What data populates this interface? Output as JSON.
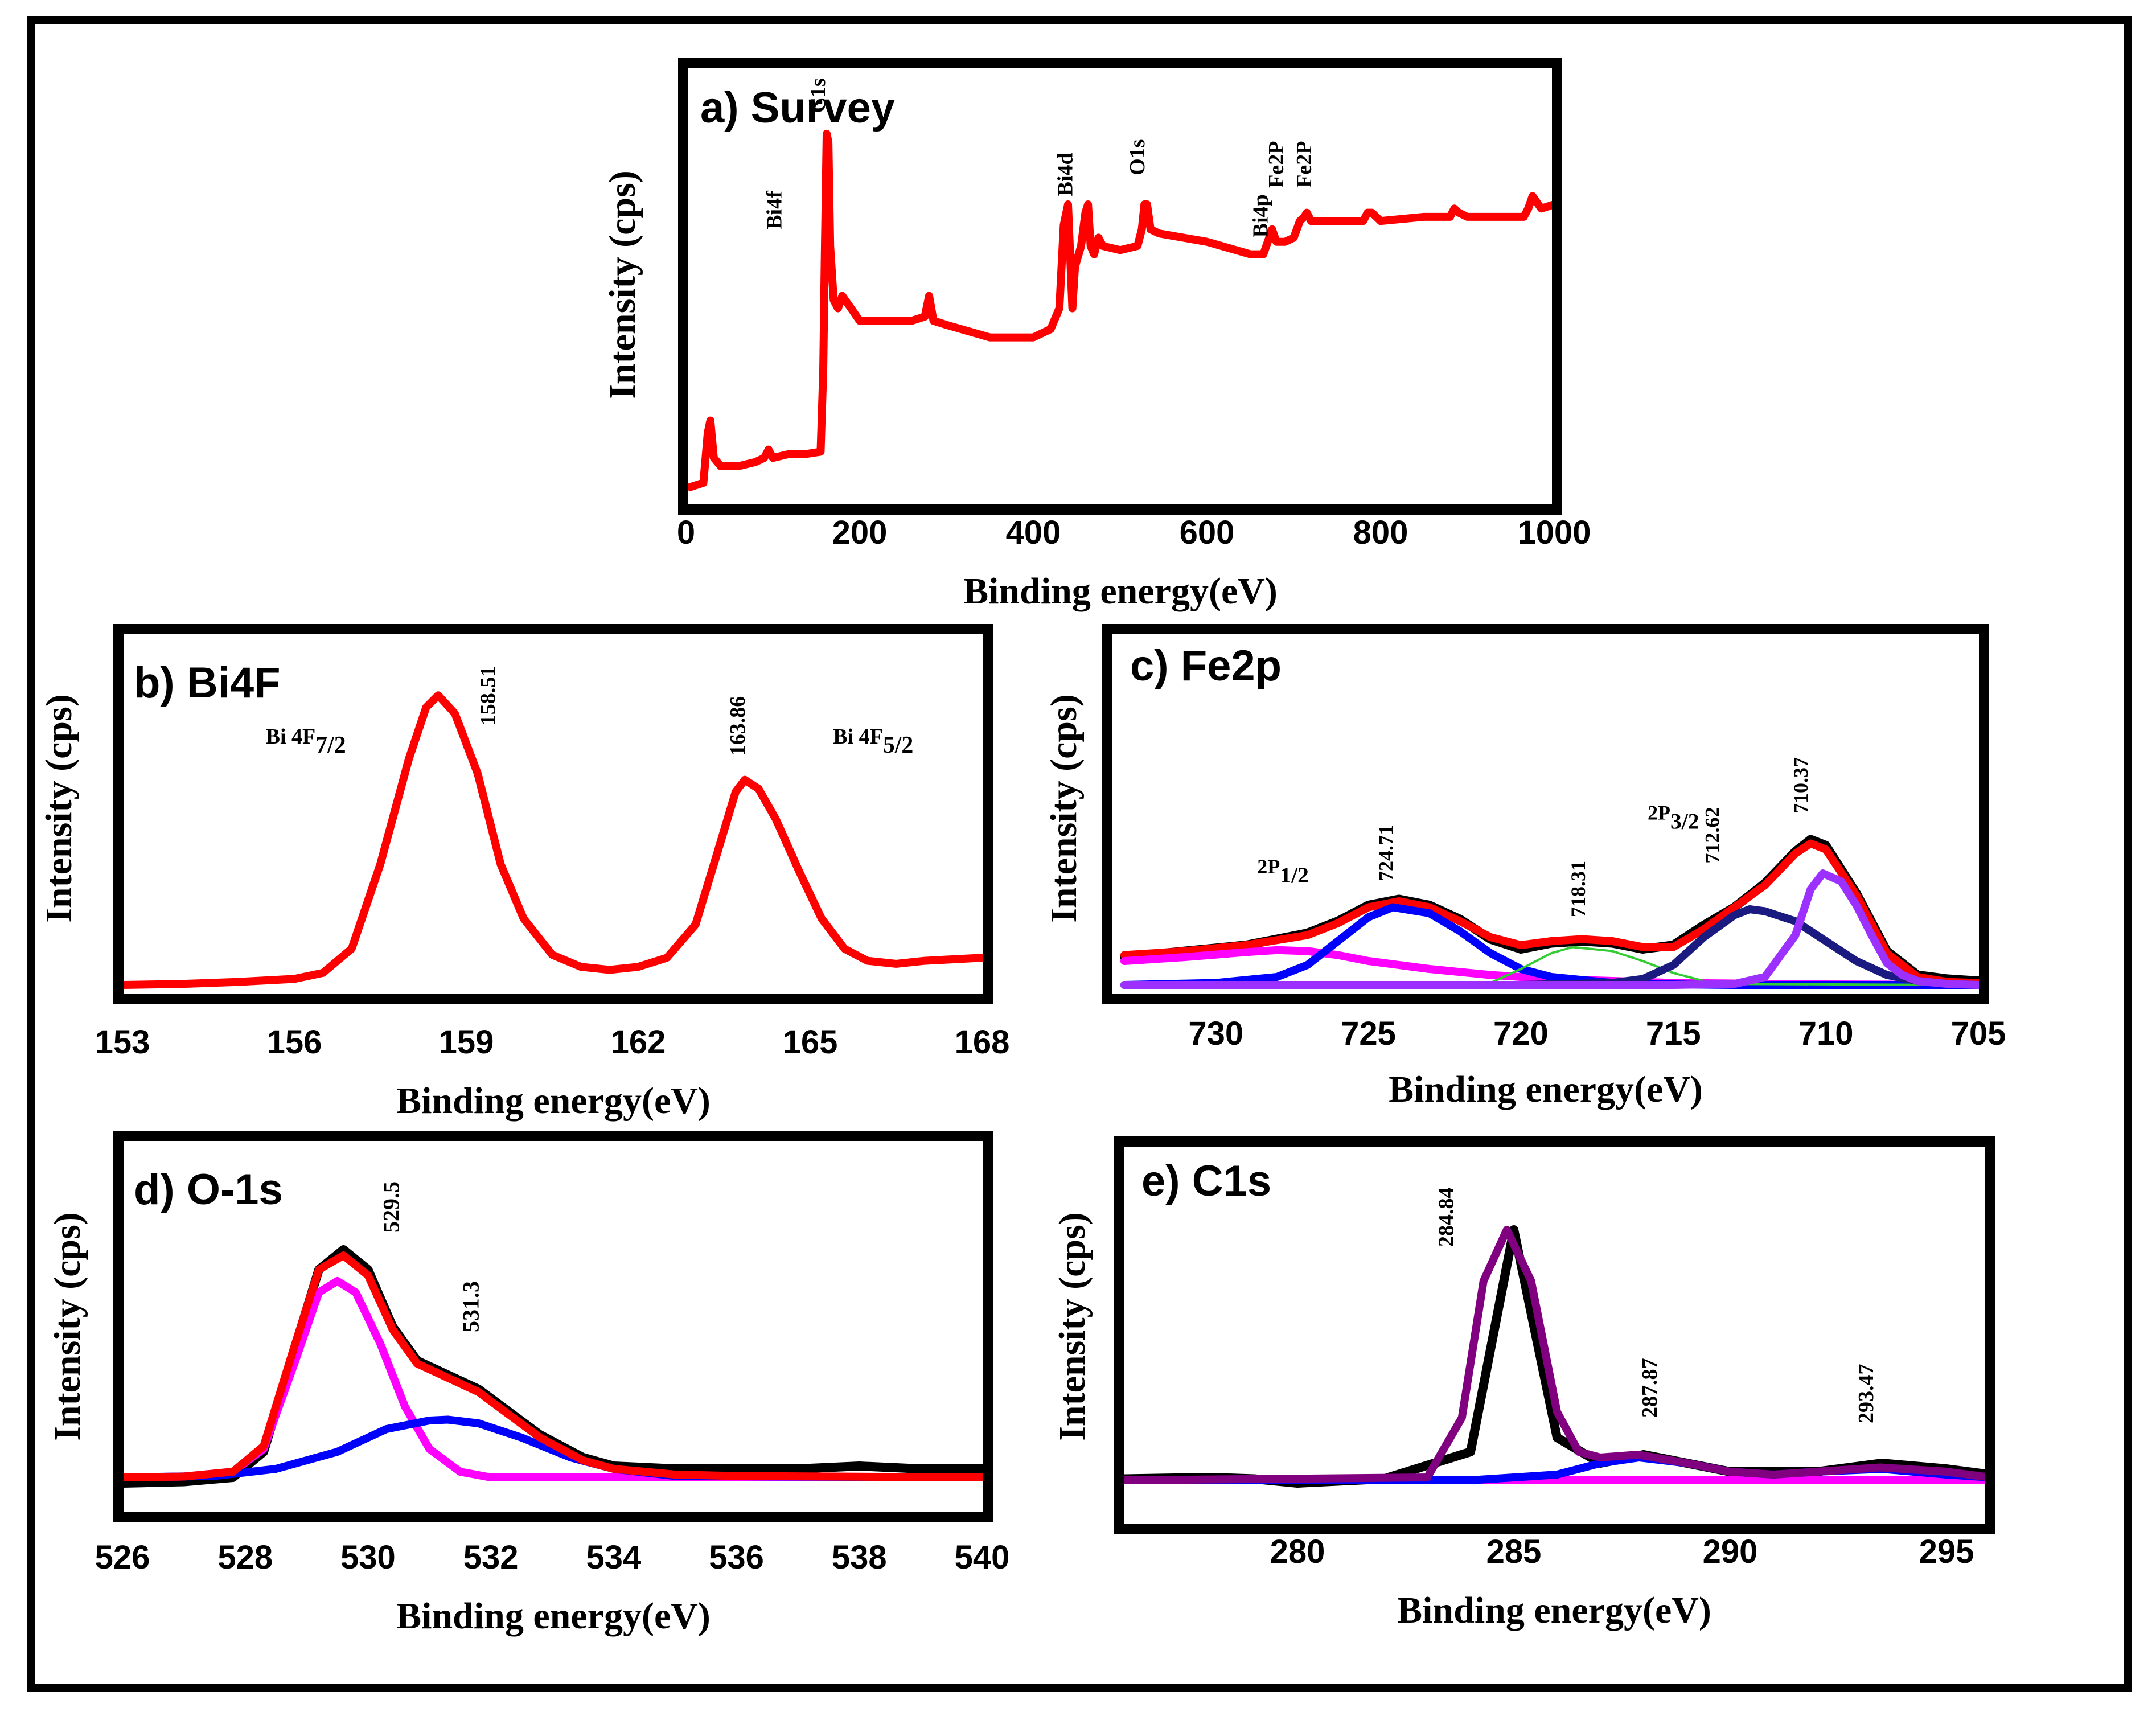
{
  "colors": {
    "raw": "#000000",
    "fit": "#ff0000",
    "magenta": "#ff00ff",
    "blue": "#0000ff",
    "navy": "#1a1a80",
    "violet": "#9b30ff",
    "green": "#33cc33",
    "purple": "#800080"
  },
  "chart_data": [
    {
      "type": "line",
      "title": "a) Survey",
      "xlabel": "Binding energy(eV)",
      "ylabel": "Intensity (cps)",
      "xlim": [
        0,
        1000
      ],
      "ylim": [
        0,
        100
      ],
      "x_reversed": false,
      "xticks": [
        0,
        200,
        400,
        600,
        800,
        1000
      ],
      "grid": false,
      "series": [
        {
          "color": "#ff0000",
          "x": [
            5,
            20,
            25,
            28,
            32,
            40,
            60,
            80,
            90,
            95,
            100,
            120,
            140,
            155,
            158,
            160,
            162,
            164,
            166,
            170,
            175,
            180,
            190,
            200,
            230,
            260,
            275,
            280,
            285,
            300,
            350,
            400,
            420,
            430,
            435,
            440,
            445,
            448,
            455,
            460,
            463,
            466,
            470,
            475,
            480,
            500,
            520,
            525,
            528,
            531,
            535,
            545,
            600,
            650,
            665,
            670,
            675,
            680,
            690,
            700,
            707,
            712,
            715,
            720,
            730,
            760,
            780,
            785,
            790,
            795,
            800,
            850,
            880,
            885,
            890,
            900,
            950,
            965,
            970,
            975,
            985,
            1000
          ],
          "y": [
            2,
            3,
            15,
            18,
            9,
            7,
            7,
            8,
            9,
            11,
            9,
            10,
            10,
            10.5,
            30,
            60,
            87,
            85,
            60,
            47,
            45,
            48,
            45,
            42,
            42,
            42,
            43,
            48,
            42,
            41,
            38,
            38,
            40,
            45,
            65,
            70,
            45,
            55,
            60,
            68,
            70,
            60,
            58,
            62,
            60,
            59,
            60,
            64,
            70,
            70,
            64,
            63,
            61,
            58,
            58,
            61,
            64,
            61,
            61,
            62,
            66,
            67,
            68,
            66,
            66,
            66,
            66,
            68,
            68,
            67,
            66,
            67,
            67,
            69,
            68,
            67,
            67,
            67,
            69,
            72,
            69,
            70
          ]
        }
      ],
      "annotations": [
        {
          "text": "Bi4f",
          "x": 110,
          "y": 64
        },
        {
          "text": "C1s",
          "x": 160,
          "y": 92
        },
        {
          "text": "Bi4d",
          "x": 445,
          "y": 72
        },
        {
          "text": "O1s",
          "x": 528,
          "y": 77
        },
        {
          "text": "Bi4p",
          "x": 670,
          "y": 62
        },
        {
          "text": "Fe2P",
          "x": 688,
          "y": 74
        },
        {
          "text": "Fe2P",
          "x": 720,
          "y": 74
        }
      ]
    },
    {
      "type": "line",
      "title": "b) Bi4F",
      "xlabel": "Binding energy(eV)",
      "ylabel": "Intensity (cps)",
      "xlim": [
        153,
        168
      ],
      "ylim": [
        0,
        100
      ],
      "x_reversed": false,
      "xticks": [
        153,
        156,
        159,
        162,
        165,
        168
      ],
      "grid": false,
      "series": [
        {
          "color": "#ff0000",
          "x": [
            153,
            154,
            155,
            156,
            156.5,
            157,
            157.5,
            158,
            158.3,
            158.51,
            158.8,
            159.2,
            159.6,
            160,
            160.5,
            161,
            161.5,
            162,
            162.5,
            163,
            163.4,
            163.7,
            163.86,
            164.1,
            164.4,
            164.8,
            165.2,
            165.6,
            166,
            166.5,
            167,
            168
          ],
          "y": [
            0,
            0.3,
            1,
            2,
            4,
            12,
            40,
            75,
            92,
            96,
            90,
            70,
            40,
            22,
            10,
            6,
            5,
            6,
            9,
            20,
            45,
            64,
            68,
            65,
            55,
            38,
            22,
            12,
            8,
            7,
            8,
            9
          ]
        }
      ],
      "annotations": [
        {
          "text": "158.51",
          "x": 159.5,
          "y": 86
        },
        {
          "text": "163.86",
          "x": 163.86,
          "y": 76
        },
        {
          "text": "Bi 4F",
          "sub": "7/2",
          "x": 156.2,
          "y": 80
        },
        {
          "text": "Bi 4F",
          "sub": "5/2",
          "x": 166.1,
          "y": 80
        }
      ]
    },
    {
      "type": "line",
      "title": "c) Fe2p",
      "xlabel": "Binding energy(eV)",
      "ylabel": "Intensity (cps)",
      "xlim": [
        733,
        705
      ],
      "ylim": [
        0,
        100
      ],
      "x_reversed": true,
      "xticks": [
        730,
        725,
        720,
        715,
        710,
        705
      ],
      "grid": false,
      "series": [
        {
          "color": "#000000",
          "x": [
            733,
            731,
            729,
            727,
            726,
            725,
            724,
            723,
            722,
            721,
            720,
            719,
            718,
            717,
            716,
            715,
            714,
            713,
            712,
            711,
            710.5,
            710,
            709,
            708,
            707,
            706,
            705
          ],
          "y": [
            14,
            17,
            20,
            26,
            32,
            40,
            43,
            40,
            33,
            23,
            18,
            21,
            22,
            21,
            18,
            20,
            30,
            39,
            51,
            67,
            73,
            70,
            46,
            17,
            5,
            3,
            2
          ]
        },
        {
          "color": "#ff0000",
          "x": [
            733,
            731,
            729,
            727,
            726,
            725,
            724,
            723,
            722,
            721,
            720,
            719,
            718,
            717,
            716,
            715,
            714,
            713,
            712,
            711,
            710.5,
            710,
            709,
            708,
            707,
            706,
            705
          ],
          "y": [
            15,
            17,
            20,
            25,
            31,
            39,
            42,
            39,
            32,
            24,
            20,
            22,
            23,
            22,
            19,
            19,
            28,
            39,
            50,
            66,
            71,
            68,
            45,
            16,
            4,
            1.5,
            1
          ]
        },
        {
          "color": "#ff00ff",
          "x": [
            733,
            731,
            729,
            728,
            727,
            726,
            725,
            723,
            721,
            719,
            717,
            715,
            710,
            705
          ],
          "y": [
            12,
            14,
            16.5,
            17.5,
            17,
            15,
            12,
            8,
            5,
            3,
            2,
            1,
            0.3,
            0
          ]
        },
        {
          "color": "#0000ff",
          "x": [
            733,
            730,
            728,
            727,
            726,
            725,
            724.2,
            723,
            722,
            721,
            720,
            719,
            717,
            715,
            713,
            705
          ],
          "y": [
            0,
            1,
            4,
            10,
            22,
            34,
            39,
            36,
            27,
            16,
            8,
            4,
            1,
            0.3,
            0,
            0
          ]
        },
        {
          "color": "#33cc33",
          "x": [
            733,
            722,
            721,
            720,
            719,
            718.3,
            717,
            716,
            715,
            714,
            713,
            705
          ],
          "y": [
            0,
            0,
            1,
            8,
            16,
            19,
            17,
            12,
            6,
            2,
            0.5,
            0
          ]
        },
        {
          "color": "#1a1a80",
          "x": [
            733,
            720,
            717,
            716,
            715,
            714,
            713,
            712.5,
            712,
            711,
            710,
            709,
            708,
            707,
            706,
            705
          ],
          "y": [
            0,
            0,
            1,
            3,
            10,
            24,
            35,
            38,
            37,
            32,
            22,
            12,
            5,
            2,
            0.5,
            0
          ]
        },
        {
          "color": "#9b30ff",
          "x": [
            733,
            715,
            713,
            712,
            711,
            710.5,
            710.1,
            709.5,
            709,
            708.5,
            708,
            707.5,
            707,
            706,
            705
          ],
          "y": [
            0,
            0,
            0.5,
            4,
            25,
            48,
            56,
            52,
            40,
            25,
            11,
            5,
            2,
            0.5,
            0
          ]
        }
      ],
      "annotations": [
        {
          "text": "2P",
          "sub": "1/2",
          "x": 727.8,
          "y": 56
        },
        {
          "text": "724.71",
          "x": 724.2,
          "y": 52
        },
        {
          "text": "718.31",
          "x": 717.9,
          "y": 34
        },
        {
          "text": "2P",
          "sub": "3/2",
          "x": 715,
          "y": 83
        },
        {
          "text": "712.62",
          "x": 713.5,
          "y": 61
        },
        {
          "text": "710.37",
          "x": 710.6,
          "y": 86
        }
      ]
    },
    {
      "type": "line",
      "title": "d) O-1s",
      "xlabel": "Binding energy(eV)",
      "ylabel": "Intensity (cps)",
      "xlim": [
        526,
        540
      ],
      "ylim": [
        0,
        100
      ],
      "x_reversed": false,
      "xticks": [
        526,
        528,
        530,
        532,
        534,
        536,
        538,
        540
      ],
      "grid": false,
      "series": [
        {
          "color": "#000000",
          "x": [
            526,
            527,
            527.8,
            528.3,
            528.8,
            529.2,
            529.6,
            530,
            530.4,
            530.8,
            531.3,
            531.8,
            532.3,
            532.8,
            533.5,
            534,
            535,
            536,
            537,
            538,
            539,
            540
          ],
          "y": [
            3,
            3.5,
            5,
            14,
            50,
            78,
            85,
            78,
            58,
            46,
            41,
            36,
            28,
            20,
            12,
            9,
            8,
            8,
            8,
            9,
            8,
            8
          ]
        },
        {
          "color": "#ff00ff",
          "x": [
            526,
            527,
            527.8,
            528.3,
            528.8,
            529.2,
            529.5,
            529.8,
            530.2,
            530.6,
            531,
            531.5,
            532,
            540
          ],
          "y": [
            5,
            5.3,
            7,
            15,
            45,
            70,
            74,
            70,
            52,
            30,
            15,
            7,
            5,
            5
          ]
        },
        {
          "color": "#0000ff",
          "x": [
            526,
            527.5,
            528.5,
            529.5,
            530.3,
            531,
            531.3,
            531.8,
            532.5,
            533.3,
            534,
            535,
            540
          ],
          "y": [
            5,
            5.5,
            8,
            14,
            22,
            25,
            25.3,
            24,
            19,
            12,
            8,
            5.5,
            5
          ]
        },
        {
          "color": "#ff0000",
          "x": [
            526,
            527,
            527.8,
            528.3,
            528.8,
            529.2,
            529.6,
            530,
            530.4,
            530.8,
            531.3,
            531.8,
            532.3,
            532.8,
            533.5,
            534,
            535,
            536,
            540
          ],
          "y": [
            5,
            5.3,
            7,
            16,
            51,
            78,
            83,
            76,
            57,
            45,
            40,
            35,
            27,
            19,
            11,
            8,
            6,
            5.5,
            5
          ]
        }
      ],
      "annotations": [
        {
          "text": "529.5",
          "x": 530.5,
          "y": 91
        },
        {
          "text": "531.3",
          "x": 531.8,
          "y": 56
        }
      ]
    },
    {
      "type": "line",
      "title": "e) C1s",
      "xlabel": "Binding energy(eV)",
      "ylabel": "Intensity (cps)",
      "xlim": [
        276,
        296
      ],
      "ylim": [
        0,
        100
      ],
      "x_reversed": false,
      "xticks": [
        280,
        285,
        290,
        295
      ],
      "grid": false,
      "series": [
        {
          "color": "#000000",
          "x": [
            276,
            278,
            279,
            280,
            282,
            284,
            285,
            286,
            287,
            288,
            289,
            290,
            292,
            293.5,
            295,
            296
          ],
          "y": [
            0.5,
            1,
            0.5,
            -1,
            0.5,
            10,
            88,
            15,
            6,
            9,
            6,
            3,
            3,
            6,
            4,
            2
          ]
        },
        {
          "color": "#ff00ff",
          "x": [
            276,
            296
          ],
          "y": [
            0,
            0
          ]
        },
        {
          "color": "#0000ff",
          "x": [
            276,
            284,
            286,
            287,
            287.9,
            289,
            290,
            291,
            292,
            293.5,
            295,
            296
          ],
          "y": [
            0,
            0,
            2,
            6,
            8,
            6,
            3,
            2,
            3,
            4,
            2,
            1
          ]
        },
        {
          "color": "#800080",
          "x": [
            276,
            283,
            283.8,
            284.3,
            284.84,
            285.4,
            286,
            286.5,
            287,
            287.87,
            289,
            290,
            291,
            292,
            293.47,
            295,
            296
          ],
          "y": [
            0,
            1,
            22,
            70,
            88,
            70,
            24,
            10,
            8,
            9,
            6,
            3,
            2,
            3,
            4.5,
            3,
            1
          ]
        }
      ],
      "annotations": [
        {
          "text": "284.84",
          "x": 283.6,
          "y": 82
        },
        {
          "text": "287.87",
          "x": 288.3,
          "y": 22
        },
        {
          "text": "293.47",
          "x": 293.3,
          "y": 20
        }
      ]
    }
  ]
}
